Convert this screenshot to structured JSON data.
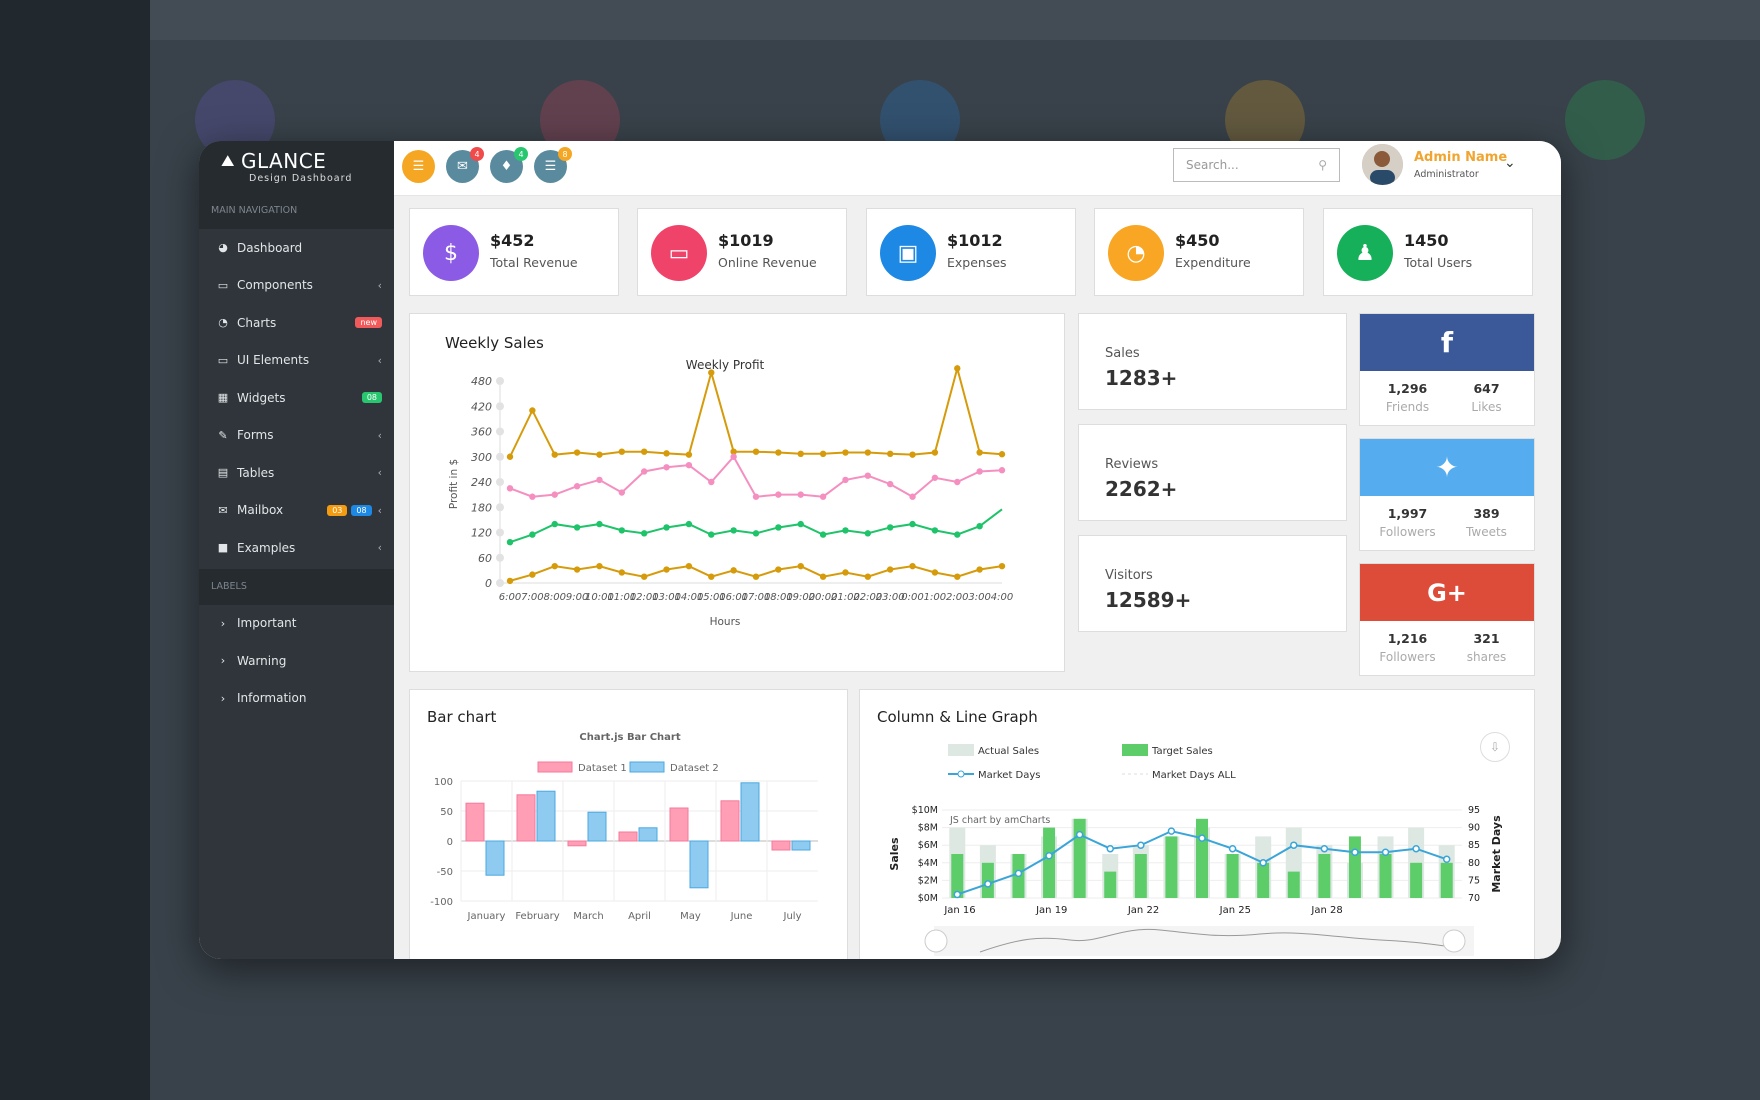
{
  "brand": {
    "name": "GLANCE",
    "tagline": "Design Dashboard"
  },
  "sidebar": {
    "section_main": "MAIN NAVIGATION",
    "items": [
      {
        "label": "Dashboard",
        "icon": "dashboard-icon"
      },
      {
        "label": "Components",
        "icon": "laptop-icon"
      },
      {
        "label": "Charts",
        "icon": "pie-chart-icon",
        "badge": "new"
      },
      {
        "label": "UI Elements",
        "icon": "laptop-icon"
      },
      {
        "label": "Widgets",
        "icon": "grid-icon",
        "badge": "08"
      },
      {
        "label": "Forms",
        "icon": "edit-icon"
      },
      {
        "label": "Tables",
        "icon": "table-icon"
      },
      {
        "label": "Mailbox",
        "icon": "envelope-icon",
        "badge1": "03",
        "badge2": "08"
      },
      {
        "label": "Examples",
        "icon": "folder-icon"
      }
    ],
    "section_labels": "LABELS",
    "labels": [
      "Important",
      "Warning",
      "Information"
    ]
  },
  "topbar": {
    "mail_count": "4",
    "bell_count": "4",
    "tasks_count": "8",
    "search_placeholder": "Search...",
    "user_name": "Admin Name",
    "user_role": "Administrator"
  },
  "stats": [
    {
      "value": "$452",
      "label": "Total Revenue",
      "color": "#8c5be6"
    },
    {
      "value": "$1019",
      "label": "Online Revenue",
      "color": "#f0436a"
    },
    {
      "value": "$1012",
      "label": "Expenses",
      "color": "#1e88e5"
    },
    {
      "value": "$450",
      "label": "Expenditure",
      "color": "#f8a623"
    },
    {
      "value": "1450",
      "label": "Total Users",
      "color": "#17b05a"
    }
  ],
  "mini_stats": [
    {
      "label": "Sales",
      "value": "1283+"
    },
    {
      "label": "Reviews",
      "value": "2262+"
    },
    {
      "label": "Visitors",
      "value": "12589+"
    }
  ],
  "social": [
    {
      "network": "facebook",
      "color": "#3b5998",
      "a_num": "1,296",
      "a_lbl": "Friends",
      "b_num": "647",
      "b_lbl": "Likes"
    },
    {
      "network": "twitter",
      "color": "#55acee",
      "a_num": "1,997",
      "a_lbl": "Followers",
      "b_num": "389",
      "b_lbl": "Tweets"
    },
    {
      "network": "google-plus",
      "color": "#dd4b39",
      "a_num": "1,216",
      "a_lbl": "Followers",
      "b_num": "321",
      "b_lbl": "shares"
    }
  ],
  "weekly_sales": {
    "title": "Weekly Sales"
  },
  "bar_card": {
    "title": "Bar chart"
  },
  "combo_card": {
    "title": "Column & Line Graph",
    "credit": "JS chart by amCharts"
  },
  "chart_data": [
    {
      "type": "line",
      "title": "Weekly Profit",
      "xlabel": "Hours",
      "ylabel": "Profit in $",
      "ylim": [
        0,
        480
      ],
      "yticks": [
        0,
        60,
        120,
        180,
        240,
        300,
        360,
        420,
        480
      ],
      "x": [
        "6:00",
        "7:00",
        "8:00",
        "9:00",
        "10:00",
        "11:00",
        "12:00",
        "13:00",
        "14:00",
        "15:00",
        "16:00",
        "17:00",
        "18:00",
        "19:00",
        "20:00",
        "21:00",
        "22:00",
        "23:00",
        "0:00",
        "1:00",
        "2:00",
        "3:00",
        "4:00"
      ],
      "series": [
        {
          "color": "#d69b0b",
          "values": [
            300,
            410,
            305,
            310,
            305,
            312,
            312,
            308,
            305,
            500,
            312,
            312,
            310,
            307,
            307,
            310,
            310,
            307,
            305,
            310,
            510,
            310,
            306
          ]
        },
        {
          "color": "#f48fc0",
          "values": [
            225,
            205,
            210,
            230,
            245,
            215,
            265,
            275,
            280,
            240,
            300,
            205,
            210,
            210,
            205,
            245,
            255,
            235,
            205,
            250,
            240,
            265,
            268
          ]
        },
        {
          "color": "#1ec36a",
          "values": [
            97,
            115,
            140,
            132,
            140,
            125,
            118,
            132,
            140,
            115,
            125,
            118,
            132,
            140,
            115,
            125,
            118,
            132,
            140,
            125,
            115,
            135,
            175
          ]
        },
        {
          "color": "#d69b0b",
          "values": [
            5,
            20,
            40,
            32,
            40,
            25,
            15,
            32,
            40,
            15,
            30,
            15,
            32,
            40,
            15,
            25,
            15,
            32,
            40,
            25,
            15,
            32,
            40
          ]
        }
      ]
    },
    {
      "type": "bar",
      "title": "Chart.js Bar Chart",
      "categories": [
        "January",
        "February",
        "March",
        "April",
        "May",
        "June",
        "July"
      ],
      "ylim": [
        -100,
        100
      ],
      "yticks": [
        100,
        50,
        0,
        -50,
        -100
      ],
      "series": [
        {
          "name": "Dataset 1",
          "color": "#ff9eb5",
          "values": [
            63,
            77,
            -8,
            15,
            55,
            67,
            -15
          ]
        },
        {
          "name": "Dataset 2",
          "color": "#8fcbf0",
          "values": [
            -57,
            83,
            48,
            22,
            -78,
            97,
            -15
          ]
        }
      ]
    },
    {
      "type": "bar",
      "legend": [
        "Actual Sales",
        "Target Sales",
        "Market Days",
        "Market Days ALL"
      ],
      "ylabel": "Sales",
      "y2label": "Market Days",
      "yticks": [
        "$0M",
        "$2M",
        "$4M",
        "$6M",
        "$8M",
        "$10M"
      ],
      "y2ticks": [
        "70",
        "75",
        "80",
        "85",
        "90",
        "95"
      ],
      "xticks": [
        "Jan 16",
        "Jan 19",
        "Jan 22",
        "Jan 25",
        "Jan 28"
      ],
      "series": [
        {
          "name": "Actual Sales",
          "color": "#dde8e2",
          "values": [
            8,
            6,
            5,
            7,
            9,
            5,
            6,
            7,
            8,
            5,
            7,
            8,
            6,
            4,
            7,
            8,
            6
          ]
        },
        {
          "name": "Target Sales",
          "color": "#5dcd6a",
          "values": [
            5,
            4,
            5,
            8,
            9,
            3,
            5,
            7,
            9,
            5,
            4,
            3,
            5,
            7,
            5,
            4,
            4
          ]
        },
        {
          "name": "Market Days",
          "color": "#3aa5d8",
          "values": [
            71,
            74,
            77,
            82,
            88,
            84,
            85,
            89,
            87,
            84,
            80,
            85,
            84,
            83,
            83,
            84,
            81
          ]
        }
      ]
    }
  ]
}
